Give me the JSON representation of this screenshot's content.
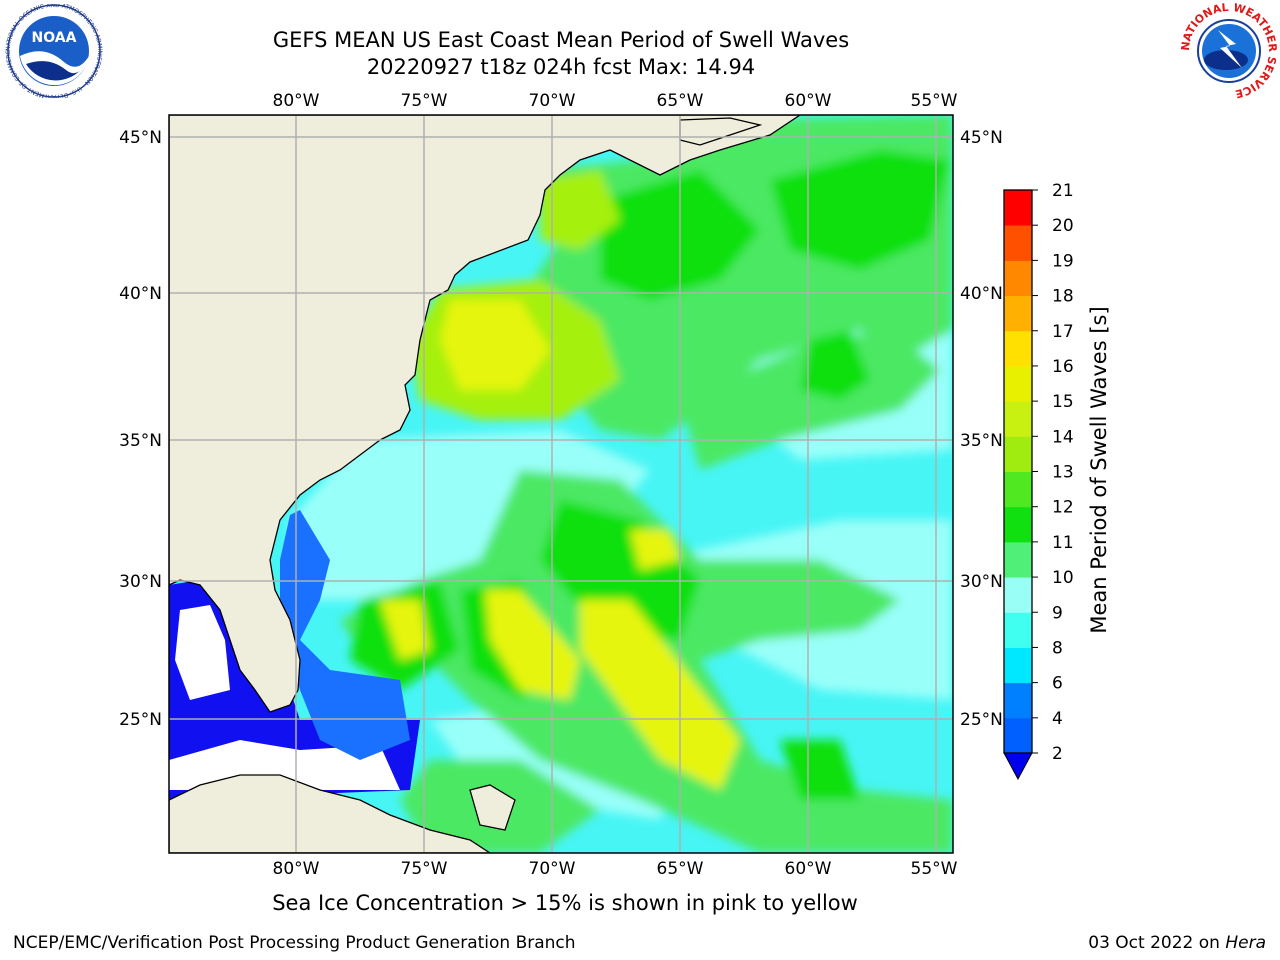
{
  "header": {
    "title": "GEFS MEAN US East Coast Mean Period of Swell Waves",
    "subtitle": "20220927 t18z 024h fcst   Max: 14.94"
  },
  "map": {
    "lon_labels": [
      "80°W",
      "75°W",
      "70°W",
      "65°W",
      "60°W",
      "55°W"
    ],
    "lat_labels": [
      "45°N",
      "40°N",
      "35°N",
      "30°N",
      "25°N"
    ],
    "colors": {
      "land": "#efeedd",
      "blue": "#1010f0",
      "cyan": "#3ff7f7",
      "light_cyan": "#99fff9",
      "green": "#4ce864",
      "bright_green": "#10e010",
      "lime": "#a6f010",
      "yellow": "#e6f510"
    }
  },
  "colorbar": {
    "label": "Mean Period of Swell Waves [s]",
    "ticks": [
      "2",
      "4",
      "6",
      "7",
      "8",
      "9",
      "10",
      "11",
      "12",
      "13",
      "14",
      "15",
      "16",
      "17",
      "18",
      "19",
      "20",
      "21"
    ],
    "tick_display": [
      "2",
      "4",
      "6",
      "8",
      "9",
      "10",
      "11",
      "12",
      "13",
      "14",
      "15",
      "16",
      "17",
      "18",
      "19",
      "20",
      "21"
    ],
    "colors": [
      "#0000ee",
      "#0060ff",
      "#00c8ff",
      "#00ffff",
      "#40fff0",
      "#99fff6",
      "#50f078",
      "#10e010",
      "#50e820",
      "#a0ec10",
      "#c8f010",
      "#e8f000",
      "#ffe000",
      "#ffb000",
      "#ff8800",
      "#ff5000",
      "#ff2000",
      "#ff0000"
    ]
  },
  "footer": {
    "caption": "Sea Ice Concentration > 15% is shown in pink to yellow",
    "credit": "NCEP/EMC/Verification Post Processing Product Generation Branch",
    "date": "03 Oct 2022 on",
    "machine": "Hera"
  },
  "logos": {
    "noaa_text": "NOAA",
    "noaa_ring": "NATIONAL OCEANIC AND ATMOSPHERIC ADMINISTRATION · U.S. DEPARTMENT OF COMMERCE",
    "nws_ring": "NATIONAL WEATHER SERVICE"
  }
}
